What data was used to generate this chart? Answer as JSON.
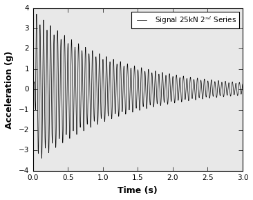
{
  "title": "",
  "xlabel": "Time (s)",
  "ylabel": "Acceleration (g)",
  "xlim": [
    0.0,
    3.0
  ],
  "ylim": [
    -4,
    4
  ],
  "xticks": [
    0.0,
    0.5,
    1.0,
    1.5,
    2.0,
    2.5,
    3.0
  ],
  "yticks": [
    -4,
    -3,
    -2,
    -1,
    0,
    1,
    2,
    3,
    4
  ],
  "legend_label": "Signal 25kN 2$^{nd}$ Series",
  "line_color": "black",
  "line_width": 0.5,
  "background_color": "#e8e8e8",
  "signal_frequency": 20.0,
  "signal_decay": 0.85,
  "signal_amplitude": 3.5,
  "signal_start": 0.04,
  "signal_duration": 3.0,
  "num_points": 12000,
  "figsize": [
    3.66,
    2.89
  ],
  "dpi": 100,
  "legend_fontsize": 7.5,
  "axis_fontsize": 9,
  "tick_fontsize": 7.5
}
